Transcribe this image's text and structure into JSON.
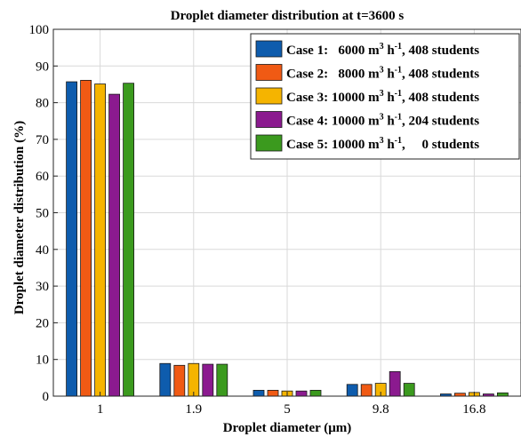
{
  "chart_data": {
    "type": "bar",
    "title": "Droplet diameter distribution  at t=3600 s",
    "xlabel": "Droplet diameter (μm)",
    "ylabel": "Droplet diameter distribution  (%)",
    "ylim": [
      0,
      100
    ],
    "yticks": [
      0,
      10,
      20,
      30,
      40,
      50,
      60,
      70,
      80,
      90,
      100
    ],
    "grid": true,
    "legend_position": "top-right",
    "categories": [
      "1",
      "1.9",
      "5",
      "9.8",
      "16.8"
    ],
    "series": [
      {
        "name": "Case 1:   6000 m³ h⁻¹, 408 students",
        "legend": {
          "case": "Case 1:   6000 m",
          "exp1": "3",
          "mid": " h",
          "exp2": "-1",
          "tail": ", 408 students"
        },
        "color": "#0e5cad",
        "values": [
          85.7,
          8.9,
          1.6,
          3.2,
          0.6
        ]
      },
      {
        "name": "Case 2:   8000 m³ h⁻¹, 408 students",
        "legend": {
          "case": "Case 2:   8000 m",
          "exp1": "3",
          "mid": " h",
          "exp2": "-1",
          "tail": ", 408 students"
        },
        "color": "#f05a14",
        "values": [
          86.1,
          8.4,
          1.6,
          3.2,
          0.8
        ]
      },
      {
        "name": "Case 3: 10000 m³ h⁻¹, 408 students",
        "legend": {
          "case": "Case 3: 10000 m",
          "exp1": "3",
          "mid": " h",
          "exp2": "-1",
          "tail": ", 408 students"
        },
        "color": "#f5b400",
        "values": [
          85.1,
          8.9,
          1.4,
          3.5,
          1.0
        ]
      },
      {
        "name": "Case 4: 10000 m³ h⁻¹, 204 students",
        "legend": {
          "case": "Case 4: 10000 m",
          "exp1": "3",
          "mid": " h",
          "exp2": "-1",
          "tail": ", 204 students"
        },
        "color": "#8b1a8f",
        "values": [
          82.3,
          8.7,
          1.4,
          6.7,
          0.6
        ]
      },
      {
        "name": "Case 5: 10000 m³ h⁻¹,     0 students",
        "legend": {
          "case": "Case 5: 10000 m",
          "exp1": "3",
          "mid": " h",
          "exp2": "-1",
          "tail": ",     0 students"
        },
        "color": "#3b9a1e",
        "values": [
          85.3,
          8.7,
          1.6,
          3.5,
          0.9
        ]
      }
    ]
  }
}
